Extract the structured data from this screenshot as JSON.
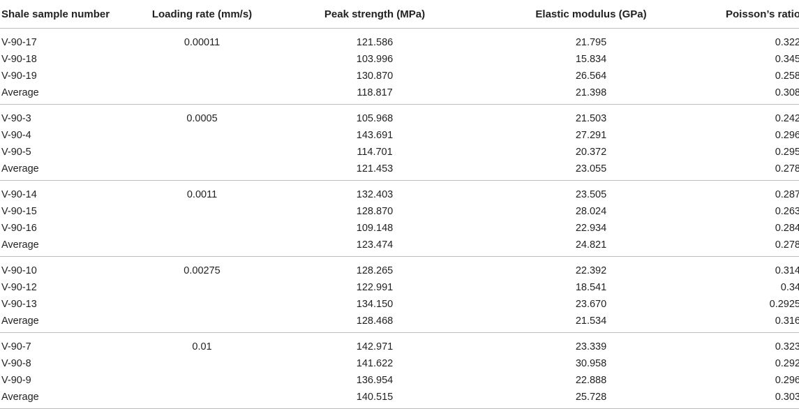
{
  "table": {
    "headers": [
      "Shale sample number",
      "Loading rate (mm/s)",
      "Peak strength (MPa)",
      "Elastic modulus (GPa)",
      "Poisson’s ratio"
    ],
    "groups": [
      {
        "rate": "0.00011",
        "rows": [
          [
            "V-90-17",
            "121.586",
            "21.795",
            "0.322"
          ],
          [
            "V-90-18",
            "103.996",
            "15.834",
            "0.345"
          ],
          [
            "V-90-19",
            "130.870",
            "26.564",
            "0.258"
          ],
          [
            "Average",
            "118.817",
            "21.398",
            "0.308"
          ]
        ]
      },
      {
        "rate": "0.0005",
        "rows": [
          [
            "V-90-3",
            "105.968",
            "21.503",
            "0.242"
          ],
          [
            "V-90-4",
            "143.691",
            "27.291",
            "0.296"
          ],
          [
            "V-90-5",
            "114.701",
            "20.372",
            "0.295"
          ],
          [
            "Average",
            "121.453",
            "23.055",
            "0.278"
          ]
        ]
      },
      {
        "rate": "0.0011",
        "rows": [
          [
            "V-90-14",
            "132.403",
            "23.505",
            "0.287"
          ],
          [
            "V-90-15",
            "128.870",
            "28.024",
            "0.263"
          ],
          [
            "V-90-16",
            "109.148",
            "22.934",
            "0.284"
          ],
          [
            "Average",
            "123.474",
            "24.821",
            "0.278"
          ]
        ]
      },
      {
        "rate": "0.00275",
        "rows": [
          [
            "V-90-10",
            "128.265",
            "22.392",
            "0.314"
          ],
          [
            "V-90-12",
            "122.991",
            "18.541",
            "0.34"
          ],
          [
            "V-90-13",
            "134.150",
            "23.670",
            "0.2925"
          ],
          [
            "Average",
            "128.468",
            "21.534",
            "0.316"
          ]
        ]
      },
      {
        "rate": "0.01",
        "rows": [
          [
            "V-90-7",
            "142.971",
            "23.339",
            "0.323"
          ],
          [
            "V-90-8",
            "141.622",
            "30.958",
            "0.292"
          ],
          [
            "V-90-9",
            "136.954",
            "22.888",
            "0.296"
          ],
          [
            "Average",
            "140.515",
            "25.728",
            "0.303"
          ]
        ]
      }
    ]
  }
}
